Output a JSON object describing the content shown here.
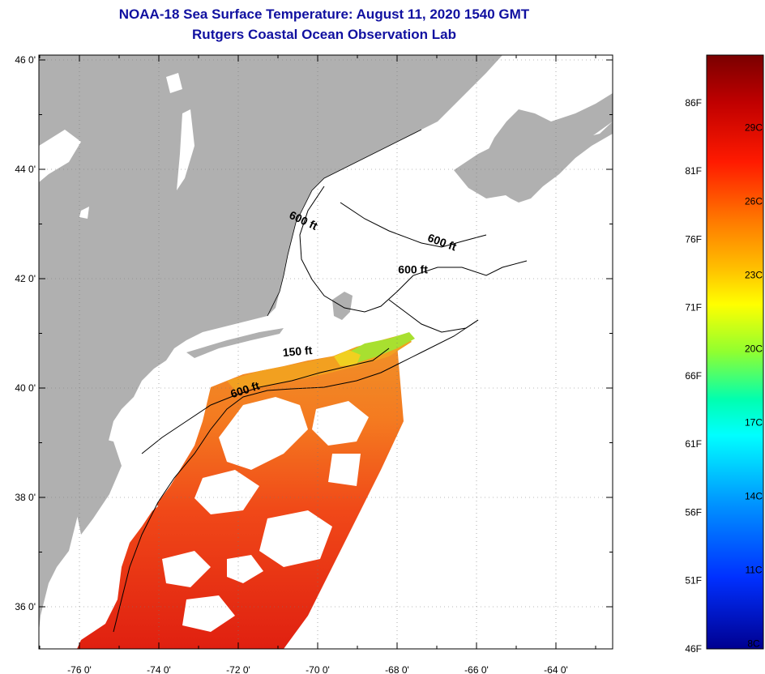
{
  "header": {
    "title_line1": "NOAA-18 Sea Surface Temperature:  August 11, 2020 1540 GMT",
    "title_line2": "Rutgers Coastal Ocean Observation Lab"
  },
  "map": {
    "lon_ticks": [
      {
        "value": -76,
        "label": "-76 0'"
      },
      {
        "value": -74,
        "label": "-74 0'"
      },
      {
        "value": -72,
        "label": "-72 0'"
      },
      {
        "value": -70,
        "label": "-70 0'"
      },
      {
        "value": -68,
        "label": "-68 0'"
      },
      {
        "value": -66,
        "label": "-66 0'"
      },
      {
        "value": -64,
        "label": "-64 0'"
      }
    ],
    "lat_ticks": [
      {
        "value": 46,
        "label": "46 0'"
      },
      {
        "value": 44,
        "label": "44 0'"
      },
      {
        "value": 42,
        "label": "42 0'"
      },
      {
        "value": 40,
        "label": "40 0'"
      },
      {
        "value": 38,
        "label": "38 0'"
      },
      {
        "value": 36,
        "label": "36 0'"
      }
    ],
    "depth_labels": [
      {
        "text": "600 ft",
        "lon": -70.4,
        "lat": 43.0
      },
      {
        "text": "600 ft",
        "lon": -66.9,
        "lat": 42.6
      },
      {
        "text": "600 ft",
        "lon": -67.6,
        "lat": 42.1
      },
      {
        "text": "150 ft",
        "lon": -70.5,
        "lat": 40.6
      },
      {
        "text": "600 ft",
        "lon": -71.8,
        "lat": 39.9
      }
    ],
    "land_color": "#b0b0b0",
    "ocean_color": "#ffffff"
  },
  "colorbar": {
    "fahrenheit_labels": [
      "86F",
      "81F",
      "76F",
      "71F",
      "66F",
      "61F",
      "56F",
      "51F",
      "46F"
    ],
    "celsius_labels": [
      "29C",
      "26C",
      "23C",
      "20C",
      "17C",
      "14C",
      "11C",
      "8C"
    ],
    "colors": [
      "#800000",
      "#ff0000",
      "#ff6000",
      "#ffc000",
      "#ffff00",
      "#80ff40",
      "#00ffff",
      "#0080ff",
      "#0000ff",
      "#000080"
    ]
  }
}
